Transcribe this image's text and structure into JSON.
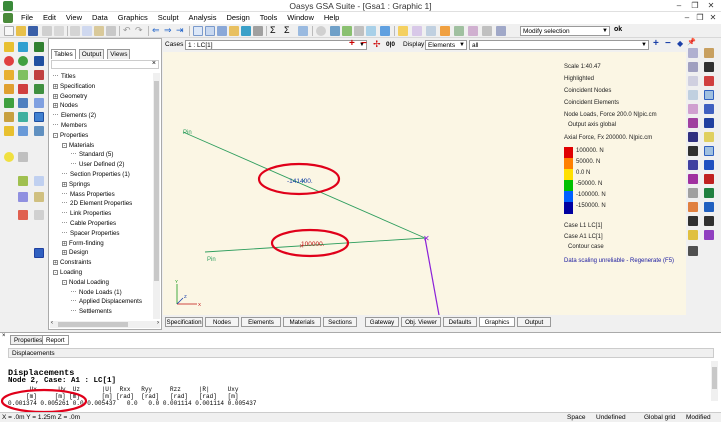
{
  "window": {
    "title": "Oasys GSA Suite - [Gsa1 : Graphic 1]"
  },
  "menu": [
    "File",
    "Edit",
    "View",
    "Data",
    "Graphics",
    "Sculpt",
    "Analysis",
    "Design",
    "Tools",
    "Window",
    "Help"
  ],
  "toolbar": {
    "selection_mode": "Modify selection",
    "ok_label": "ok",
    "sum_label": "Σ"
  },
  "graphic_toolbar": {
    "cases_label": "Cases",
    "cases_value": "1 : LC[1]",
    "display_label": "Display",
    "display_value": "Elements",
    "display_filter": "all",
    "zoom_label": "0|0"
  },
  "tree": {
    "tabs": [
      "Tables",
      "Output",
      "Views"
    ],
    "items": [
      {
        "label": "Titles",
        "expander": ""
      },
      {
        "label": "Specification",
        "expander": "+"
      },
      {
        "label": "Geometry",
        "expander": "+"
      },
      {
        "label": "Nodes",
        "expander": "+"
      },
      {
        "label": "Elements (2)",
        "expander": ""
      },
      {
        "label": "Members",
        "expander": ""
      },
      {
        "label": "Properties",
        "expander": "-"
      },
      {
        "label": "Materials",
        "expander": "-"
      },
      {
        "label": "Standard (5)",
        "expander": ""
      },
      {
        "label": "User Defined (2)",
        "expander": ""
      },
      {
        "label": "Section Properties (1)",
        "expander": ""
      },
      {
        "label": "Springs",
        "expander": "+"
      },
      {
        "label": "Mass Properties",
        "expander": ""
      },
      {
        "label": "2D Element Properties",
        "expander": ""
      },
      {
        "label": "Link Properties",
        "expander": ""
      },
      {
        "label": "Cable Properties",
        "expander": ""
      },
      {
        "label": "Spacer Properties",
        "expander": ""
      },
      {
        "label": "Form-finding",
        "expander": "+"
      },
      {
        "label": "Design",
        "expander": "+"
      },
      {
        "label": "Constraints",
        "expander": "+"
      },
      {
        "label": "Loading",
        "expander": "-"
      },
      {
        "label": "Nodal Loading",
        "expander": "-"
      },
      {
        "label": "Node Loads (1)",
        "expander": ""
      },
      {
        "label": "Applied Displacements",
        "expander": ""
      },
      {
        "label": "Settlements",
        "expander": ""
      }
    ]
  },
  "graphic": {
    "pin_top": "Pin",
    "pin_bottom": "Pin",
    "label_upper": "-141400.",
    "label_lower": "100000.",
    "axis_x": "X",
    "axis_y": "Y",
    "axis_z": "Z"
  },
  "legend": {
    "scale": "Scale  1:40.47",
    "highlighted": "Highlighted",
    "coincident_nodes": "Coincident Nodes",
    "coincident_elements": "Coincident Elements",
    "node_loads": "Node Loads, Force  200.0 N|pic.cm",
    "output_axis": "Output axis  global",
    "axial_force": "Axial Force, Fx  200000. N|pic.cm",
    "levels": [
      {
        "label": "100000. N",
        "color": "#e00000"
      },
      {
        "label": "50000. N",
        "color": "#ff8000"
      },
      {
        "label": "0.0 N",
        "color": "#ffe000"
      },
      {
        "label": "-50000. N",
        "color": "#00c000"
      },
      {
        "label": "-100000. N",
        "color": "#0060ff"
      },
      {
        "label": "-150000. N",
        "color": "#0000a0"
      }
    ],
    "case_l": "Case  L1   LC[1]",
    "case_a": "Case  A1   LC[1]",
    "contour": "Contour case",
    "warning": "Data scaling unreliable - Regenerate (F5)"
  },
  "bottom_tabs": [
    "Specification",
    "Nodes",
    "Elements",
    "Materials",
    "Sections",
    "Gateway",
    "Obj. Viewer",
    "Defaults",
    "Graphics",
    "Output"
  ],
  "output": {
    "tabs": [
      "Properties",
      "Report"
    ],
    "header": "Displacements",
    "title": "Displacements",
    "subtitle": "Node 2, Case:  A1 : LC[1]",
    "columns": "      Ux      Uy  Uz      |U|  Rxx   Ryy     Rzz     |R|     Uxy",
    "units": "     [m]     [m] [m]      [m] [rad]  [rad]   [rad]   [rad]   [m]",
    "values": "0.001374 0.005261 0.0 0.005437   0.0   0.0 0.001114 0.001114 0.005437"
  },
  "status": {
    "coords": "X = .0m  Y = 1.25m  Z = .0m",
    "space": "Space",
    "undefined": "Undefined",
    "grid": "Global grid",
    "modified": "Modified"
  },
  "colors": {
    "element_lines": "#2f9e5e",
    "member_purple": "#8a1fd8",
    "annotation_red": "#e0001a",
    "graphic_bg": "#fbf6e4",
    "warning_blue": "#1a1aa0"
  }
}
